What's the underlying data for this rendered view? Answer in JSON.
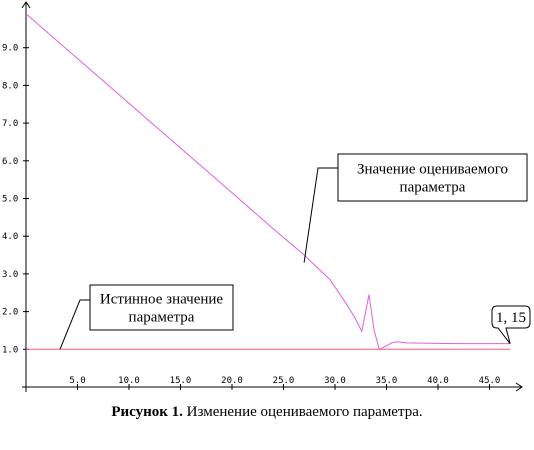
{
  "chart_data": {
    "type": "line",
    "xlim": [
      0,
      47.5
    ],
    "ylim": [
      0,
      10
    ],
    "x_ticks": [
      5,
      10,
      15,
      20,
      25,
      30,
      35,
      40,
      45
    ],
    "x_tick_labels": [
      "5.0",
      "10.0",
      "15.0",
      "20.0",
      "25.0",
      "30.0",
      "35.0",
      "40.0",
      "45.0"
    ],
    "y_ticks": [
      1,
      2,
      3,
      4,
      5,
      6,
      7,
      8,
      9
    ],
    "y_tick_labels": [
      "1.0",
      "2.0",
      "3.0",
      "4.0",
      "5.0",
      "6.0",
      "7.0",
      "8.0",
      "9.0"
    ],
    "grid": false,
    "series": [
      {
        "color": "#e060e0",
        "x": [
          0,
          4,
          8,
          12,
          16,
          20,
          24,
          27,
          29.5,
          31,
          31.9,
          32.6,
          33.3,
          33.8,
          34.3,
          34.9,
          35.5,
          36,
          37,
          39,
          42,
          45,
          47
        ],
        "y": [
          9.9,
          8.95,
          8.0,
          7.05,
          6.1,
          5.15,
          4.2,
          3.5,
          2.85,
          2.25,
          1.85,
          1.48,
          2.45,
          1.5,
          1.0,
          1.08,
          1.17,
          1.2,
          1.17,
          1.16,
          1.15,
          1.15,
          1.15
        ]
      },
      {
        "color": "#ff5a7a",
        "x": [
          0,
          47
        ],
        "y": [
          1.0,
          1.0
        ]
      }
    ],
    "annotations": [
      {
        "text_lines": [
          "Значение оцениваемого",
          "параметра"
        ],
        "target": [
          27.0,
          3.3
        ]
      },
      {
        "text_lines": [
          "Истинное значение",
          "параметра"
        ],
        "target": [
          3.3,
          1.0
        ]
      },
      {
        "text_lines": [
          "1, 15"
        ],
        "target": [
          47.0,
          1.15
        ]
      }
    ]
  },
  "caption": {
    "label": "Рисунок 1.",
    "text": "Изменение оцениваемого параметра."
  }
}
